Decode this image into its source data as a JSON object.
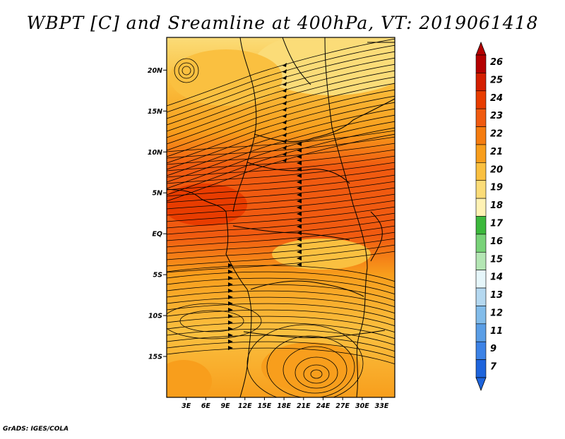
{
  "title": "WBPT [C] and Sreamline at 400hPa, VT: 2019061418",
  "credit": "GrADS: IGES/COLA",
  "map": {
    "lat_ticks": [
      "20N",
      "15N",
      "10N",
      "5N",
      "EQ",
      "5S",
      "10S",
      "15S"
    ],
    "lon_ticks": [
      "3E",
      "6E",
      "9E",
      "12E",
      "15E",
      "18E",
      "21E",
      "24E",
      "27E",
      "30E",
      "33E"
    ],
    "lon_range": [
      0,
      35
    ],
    "lat_range": [
      -20,
      24
    ]
  },
  "colorbar": {
    "labels": [
      "26",
      "25",
      "24",
      "23",
      "22",
      "21",
      "20",
      "19",
      "18",
      "17",
      "16",
      "15",
      "14",
      "13",
      "12",
      "11",
      "9",
      "7"
    ],
    "colors": [
      "#b40000",
      "#d41e00",
      "#e83c00",
      "#f05a10",
      "#f57c10",
      "#f89e1c",
      "#fac040",
      "#fbdc78",
      "#fff2b4",
      "#3cb83c",
      "#78d278",
      "#b4e6b4",
      "#e6f6fa",
      "#b4d8f0",
      "#82bcea",
      "#5a9ee6",
      "#3c82e6",
      "#1e64dc"
    ]
  }
}
